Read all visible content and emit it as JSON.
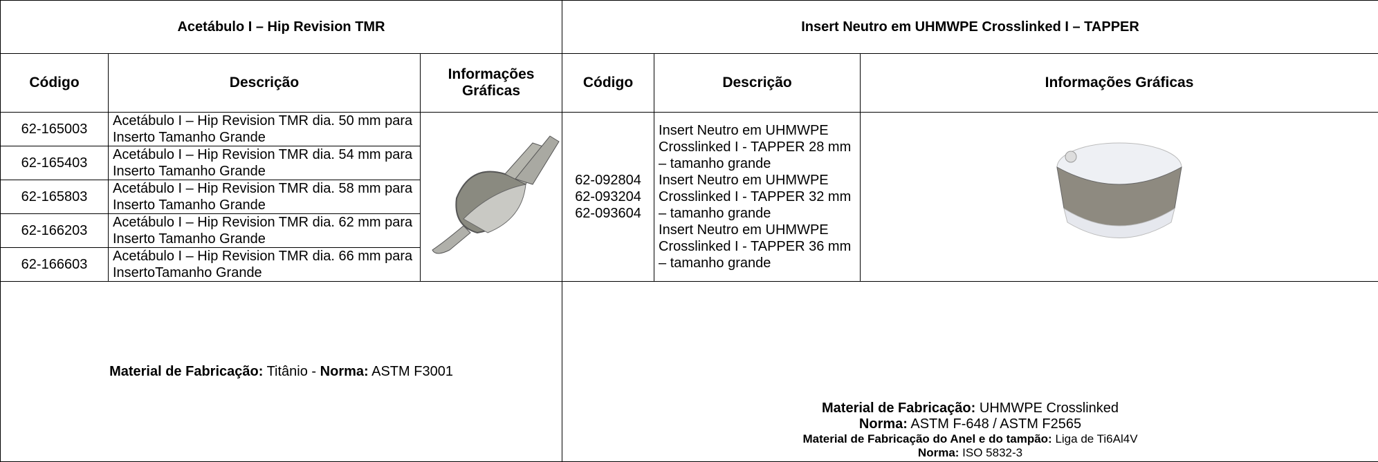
{
  "left": {
    "title": "Acetábulo I – Hip Revision TMR",
    "headers": [
      "Código",
      "Descrição",
      "Informações Gráficas"
    ],
    "rows": [
      {
        "code": "62-165003",
        "description": "Acetábulo I – Hip Revision TMR dia. 50 mm para Inserto Tamanho Grande"
      },
      {
        "code": "62-165403",
        "description": "Acetábulo I – Hip Revision TMR dia. 54 mm para Inserto Tamanho Grande"
      },
      {
        "code": "62-165803",
        "description": "Acetábulo I – Hip Revision TMR dia. 58 mm para Inserto Tamanho Grande"
      },
      {
        "code": "62-166203",
        "description": "Acetábulo I – Hip Revision TMR dia. 62 mm para Inserto Tamanho Grande"
      },
      {
        "code": "62-166603",
        "description": "Acetábulo I – Hip Revision TMR dia. 66 mm para InsertoTamanho Grande"
      }
    ],
    "footer": [
      {
        "label": "Material de Fabricação:",
        "text": "Titânio -"
      },
      {
        "label": "Norma:",
        "text": "ASTM F3001"
      }
    ]
  },
  "right": {
    "title": "Insert Neutro em UHMWPE Crosslinked I – TAPPER",
    "headers": [
      "Código",
      "Descrição",
      "Informações Gráficas"
    ],
    "codes": [
      "62-092804",
      "62-093204",
      "62-093604"
    ],
    "descriptions": [
      "Insert Neutro em UHMWPE Crosslinked I - TAPPER 28 mm – tamanho grande",
      "Insert Neutro em UHMWPE Crosslinked I - TAPPER 32 mm – tamanho grande",
      "Insert Neutro em UHMWPE Crosslinked I - TAPPER 36 mm – tamanho grande"
    ],
    "footer": [
      {
        "label": "Material de Fabricação:",
        "text": "UHMWPE Crosslinked"
      },
      {
        "label": "Norma:",
        "text": "ASTM F-648 / ASTM F2565"
      },
      {
        "label": "Material de Fabricação do Anel e do tampão:",
        "text": "Liga de Ti6Al4V"
      },
      {
        "label": "Norma:",
        "text": "ISO 5832-3"
      }
    ]
  }
}
